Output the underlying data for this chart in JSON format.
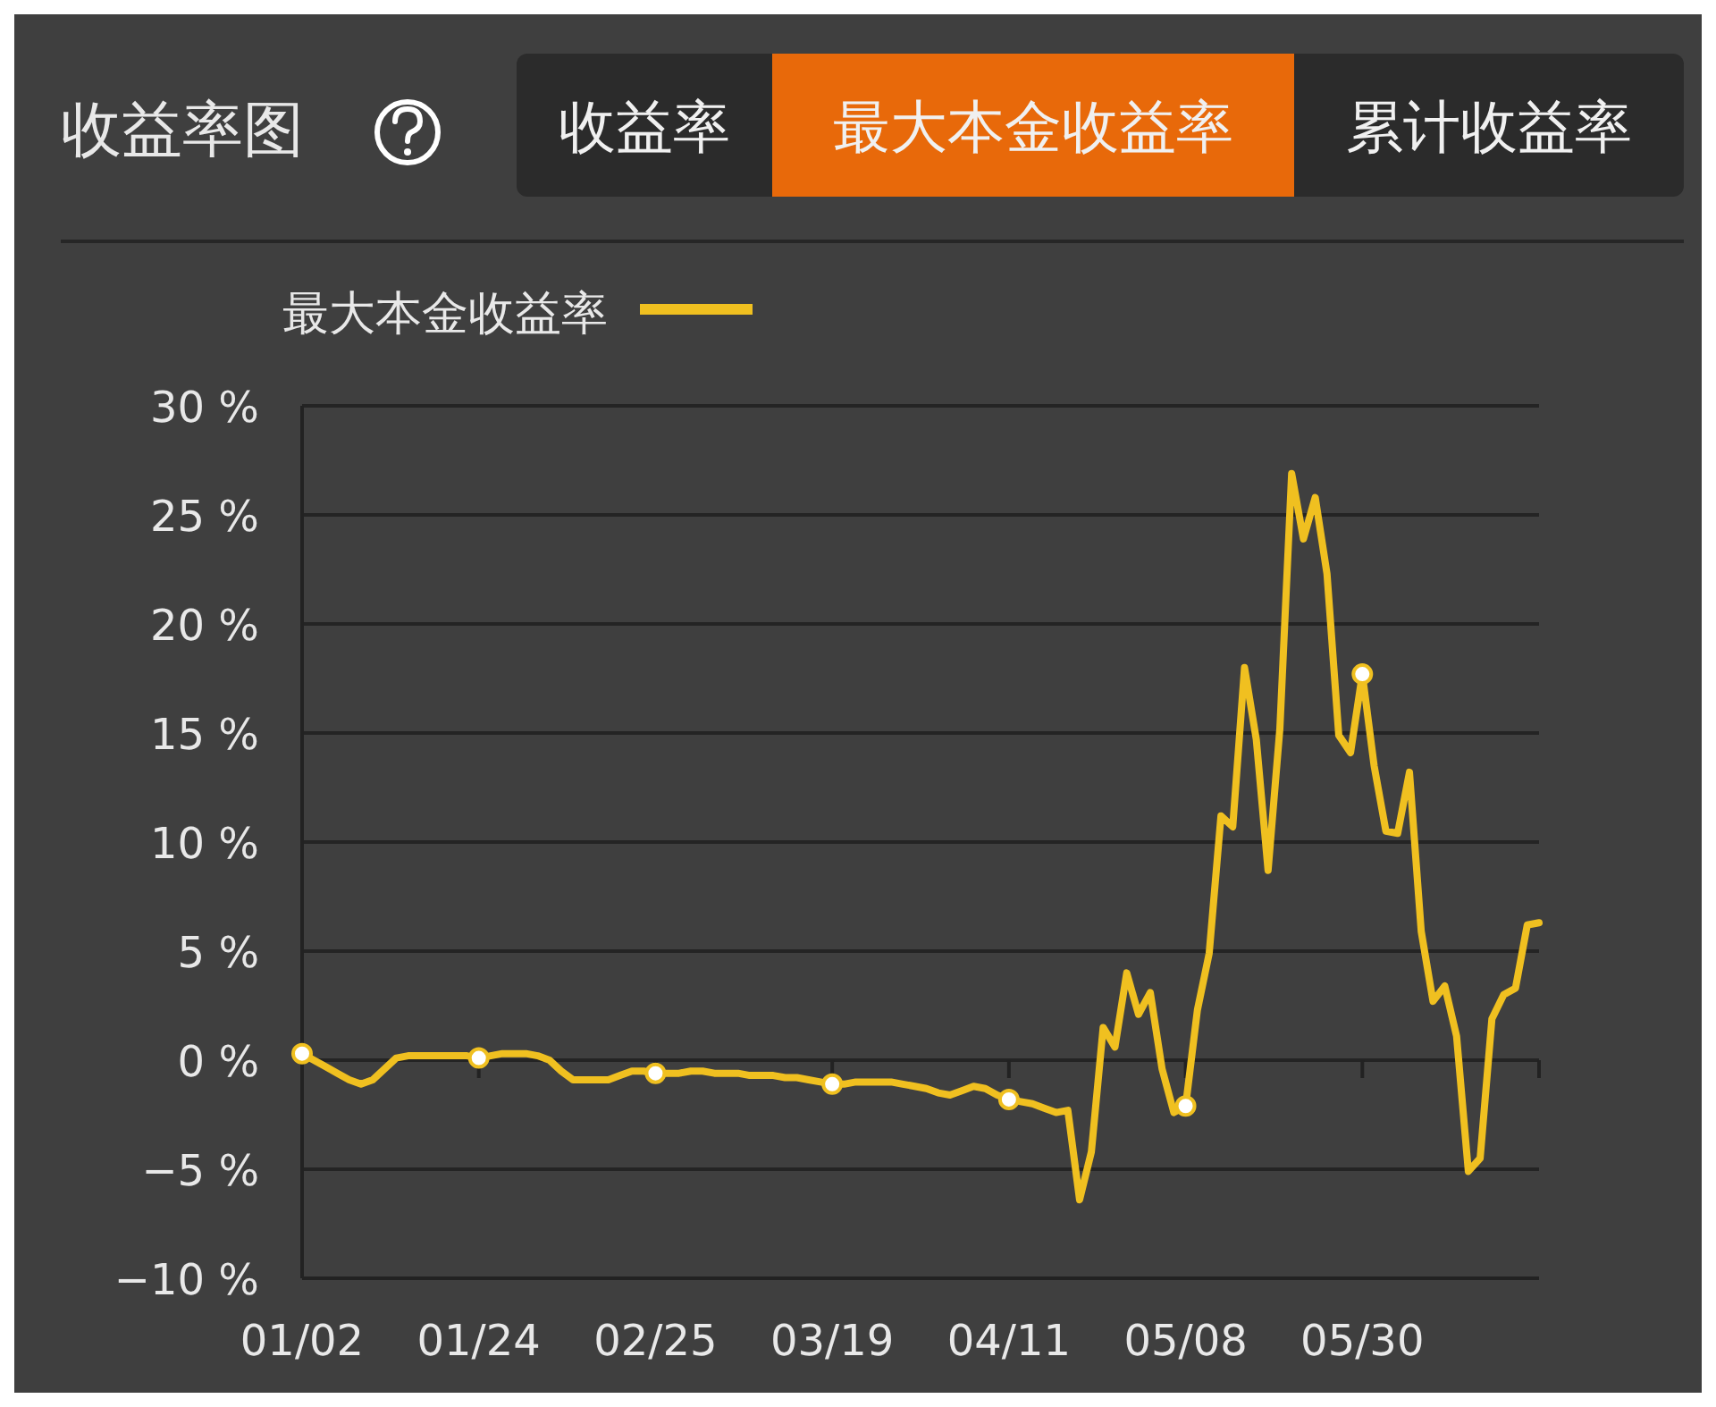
{
  "chart_data": {
    "type": "line",
    "title": "收益率图",
    "annotations": [
      "收益率",
      "最大本金收益率",
      "累计收益率"
    ],
    "categories": [
      "01/02",
      null,
      null,
      null,
      null,
      null,
      null,
      null,
      null,
      null,
      null,
      null,
      null,
      null,
      null,
      "01/24",
      null,
      null,
      null,
      null,
      null,
      null,
      null,
      null,
      null,
      null,
      null,
      null,
      null,
      null,
      "02/25",
      null,
      null,
      null,
      null,
      null,
      null,
      null,
      null,
      null,
      null,
      null,
      null,
      null,
      null,
      "03/19",
      null,
      null,
      null,
      null,
      null,
      null,
      null,
      null,
      null,
      null,
      null,
      null,
      null,
      null,
      "04/11",
      null,
      null,
      null,
      null,
      null,
      null,
      null,
      null,
      null,
      null,
      null,
      null,
      null,
      null,
      "05/08",
      null,
      null,
      null,
      null,
      null,
      null,
      null,
      null,
      null,
      null,
      null,
      null,
      null,
      null,
      "05/30",
      null,
      null,
      null,
      null,
      null,
      null,
      null,
      null,
      null,
      null,
      null,
      null,
      null,
      null,
      null
    ],
    "ylim": [
      -10,
      30
    ],
    "yticks": [
      {
        "value": -10,
        "label": "−10 %"
      },
      {
        "value": -5,
        "label": "−5 %"
      },
      {
        "value": 0,
        "label": "0 %"
      },
      {
        "value": 5,
        "label": "5 %"
      },
      {
        "value": 10,
        "label": "10 %"
      },
      {
        "value": 15,
        "label": "15 %"
      },
      {
        "value": 20,
        "label": "20 %"
      },
      {
        "value": 25,
        "label": "25 %"
      },
      {
        "value": 30,
        "label": "30 %"
      }
    ],
    "grid": "y",
    "legend": "top left",
    "line_style": "solid",
    "series": [
      {
        "name": "最大本金收益率",
        "color": "#f0c020",
        "values": [
          0.3,
          0.0,
          -0.3,
          -0.6,
          -0.9,
          -1.1,
          -0.9,
          -0.4,
          0.1,
          0.2,
          0.2,
          0.2,
          0.2,
          0.2,
          0.2,
          0.1,
          0.2,
          0.3,
          0.3,
          0.3,
          0.2,
          0.0,
          -0.5,
          -0.9,
          -0.9,
          -0.9,
          -0.9,
          -0.7,
          -0.5,
          -0.5,
          -0.6,
          -0.6,
          -0.6,
          -0.5,
          -0.5,
          -0.6,
          -0.6,
          -0.6,
          -0.7,
          -0.7,
          -0.7,
          -0.8,
          -0.8,
          -0.9,
          -1.0,
          -1.1,
          -1.1,
          -1.0,
          -1.0,
          -1.0,
          -1.0,
          -1.1,
          -1.2,
          -1.3,
          -1.5,
          -1.6,
          -1.4,
          -1.2,
          -1.3,
          -1.6,
          -1.8,
          -1.9,
          -2.0,
          -2.2,
          -2.4,
          -2.3,
          -6.4,
          -4.2,
          1.5,
          0.6,
          4.0,
          2.1,
          3.1,
          -0.4,
          -2.4,
          -2.1,
          2.3,
          4.9,
          11.2,
          10.7,
          18.0,
          14.7,
          8.7,
          15.2,
          26.9,
          23.9,
          25.8,
          22.3,
          14.9,
          14.1,
          17.7,
          13.5,
          10.5,
          10.4,
          13.2,
          5.9,
          2.7,
          3.4,
          1.1,
          -5.1,
          -4.5,
          1.9,
          3.0,
          3.3,
          6.2,
          6.3
        ]
      },
      {
        "type": "scatter",
        "color": "#ffffff",
        "marker": "circle",
        "values": [
          0.3,
          null,
          null,
          null,
          null,
          null,
          null,
          null,
          null,
          null,
          null,
          null,
          null,
          null,
          null,
          0.1,
          null,
          null,
          null,
          null,
          null,
          null,
          null,
          null,
          null,
          null,
          null,
          null,
          null,
          null,
          -0.6,
          null,
          null,
          null,
          null,
          null,
          null,
          null,
          null,
          null,
          null,
          null,
          null,
          null,
          null,
          -1.1,
          null,
          null,
          null,
          null,
          null,
          null,
          null,
          null,
          null,
          null,
          null,
          null,
          null,
          null,
          -1.8,
          null,
          null,
          null,
          null,
          null,
          null,
          null,
          null,
          null,
          null,
          null,
          null,
          null,
          null,
          -2.1,
          null,
          null,
          null,
          null,
          null,
          null,
          null,
          null,
          null,
          null,
          null,
          null,
          null,
          null,
          17.7,
          null,
          null,
          null,
          null,
          null,
          null,
          null,
          null,
          null,
          null,
          null,
          null,
          null,
          null,
          null
        ]
      }
    ]
  }
}
